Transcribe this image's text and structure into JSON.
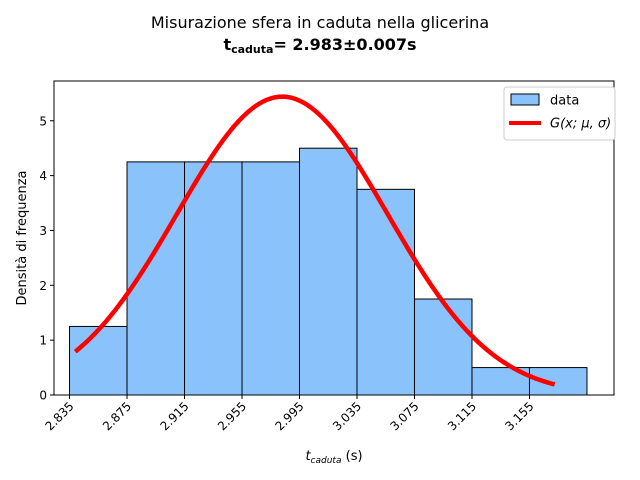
{
  "chart_data": {
    "type": "bar",
    "title_line1": "Misurazione sfera in caduta nella glicerina",
    "title_line2_base": "t",
    "title_line2_sub": "caduta",
    "title_line2_rest": "= 2.983±0.007s",
    "xlabel_base": "t",
    "xlabel_sub": "caduta",
    "xlabel_unit": " (s)",
    "ylabel": "Densità di frequenza",
    "xlim": [
      2.8242,
      3.2138
    ],
    "ylim": [
      0,
      5.725
    ],
    "xticks": [
      "2.835",
      "2.875",
      "2.915",
      "2.955",
      "2.995",
      "3.035",
      "3.075",
      "3.115",
      "3.155"
    ],
    "yticks": [
      "0",
      "1",
      "2",
      "3",
      "4",
      "5"
    ],
    "bin_edges": [
      2.835,
      2.875,
      2.915,
      2.955,
      2.995,
      3.035,
      3.075,
      3.115,
      3.155,
      3.195
    ],
    "values": [
      1.25,
      4.25,
      4.25,
      4.25,
      4.5,
      3.75,
      1.75,
      0.5,
      0.5
    ],
    "fit": {
      "mu": 2.983,
      "sigma": 0.0733,
      "amplitude": 5.44,
      "x_start": 2.839,
      "x_end": 3.1725
    },
    "legend": {
      "placement": "top-right",
      "entries": [
        "data",
        "G(x; μ, σ)"
      ]
    },
    "colors": {
      "bar_fill": "#8ac3fc",
      "bar_edge": "#000000",
      "fit_line": "#ff0000"
    },
    "grid": false
  }
}
